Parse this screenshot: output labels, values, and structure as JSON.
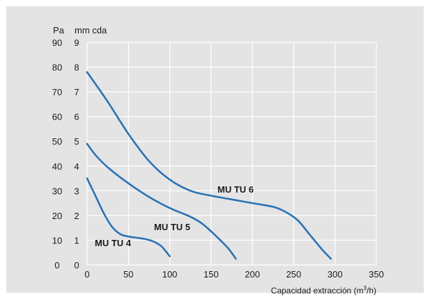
{
  "chart_data": {
    "type": "line",
    "xlabel": "Capacidad extracción (m",
    "xlabel_sup": "3",
    "xlabel_end": "/h)",
    "y_units": {
      "pa": "Pa",
      "mm": "mm cda"
    },
    "xlim": [
      0,
      350
    ],
    "ylim_mm": [
      0,
      9
    ],
    "ylim_pa": [
      0,
      90
    ],
    "x_ticks": [
      "0",
      "50",
      "100",
      "150",
      "200",
      "250",
      "300",
      "350"
    ],
    "pa_ticks": [
      "0",
      "10",
      "20",
      "30",
      "40",
      "50",
      "60",
      "70",
      "80",
      "90"
    ],
    "mm_ticks": [
      "0",
      "1",
      "2",
      "3",
      "4",
      "5",
      "6",
      "7",
      "8",
      "9"
    ],
    "grid": true,
    "series": [
      {
        "name": "MU TU 4",
        "points": [
          [
            0,
            3.5
          ],
          [
            10,
            2.8
          ],
          [
            20,
            2.1
          ],
          [
            30,
            1.55
          ],
          [
            40,
            1.25
          ],
          [
            50,
            1.15
          ],
          [
            60,
            1.1
          ],
          [
            70,
            1.05
          ],
          [
            80,
            0.95
          ],
          [
            90,
            0.75
          ],
          [
            100,
            0.35
          ]
        ]
      },
      {
        "name": "MU TU 5",
        "points": [
          [
            0,
            4.9
          ],
          [
            10,
            4.45
          ],
          [
            25,
            3.95
          ],
          [
            50,
            3.3
          ],
          [
            75,
            2.75
          ],
          [
            100,
            2.3
          ],
          [
            125,
            1.95
          ],
          [
            140,
            1.65
          ],
          [
            155,
            1.2
          ],
          [
            170,
            0.7
          ],
          [
            180,
            0.25
          ]
        ]
      },
      {
        "name": "MU TU 6",
        "points": [
          [
            0,
            7.8
          ],
          [
            25,
            6.6
          ],
          [
            50,
            5.3
          ],
          [
            75,
            4.2
          ],
          [
            100,
            3.45
          ],
          [
            125,
            3.0
          ],
          [
            150,
            2.8
          ],
          [
            175,
            2.65
          ],
          [
            200,
            2.5
          ],
          [
            225,
            2.35
          ],
          [
            240,
            2.15
          ],
          [
            255,
            1.8
          ],
          [
            270,
            1.2
          ],
          [
            285,
            0.6
          ],
          [
            295,
            0.25
          ]
        ]
      }
    ]
  }
}
